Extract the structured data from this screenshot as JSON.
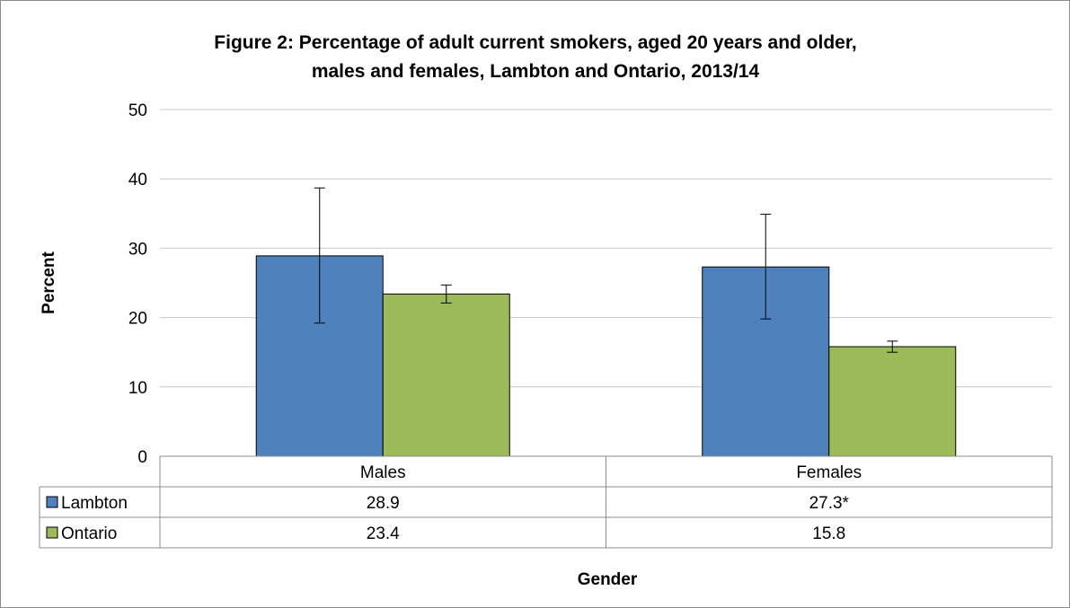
{
  "chart_data": {
    "type": "bar",
    "title_lines": [
      "Figure 2: Percentage of adult current smokers, aged 20 years and older,",
      "males and females, Lambton and Ontario, 2013/14"
    ],
    "xlabel": "Gender",
    "ylabel": "Percent",
    "ylim": [
      0,
      50
    ],
    "yticks": [
      0,
      10,
      20,
      30,
      40,
      50
    ],
    "grid": true,
    "legend": "data-table",
    "categories": [
      "Males",
      "Females"
    ],
    "series": [
      {
        "name": "Lambton",
        "color": "#4f81bd",
        "values": [
          28.9,
          27.3
        ],
        "labels": [
          "28.9",
          "27.3*"
        ],
        "error_low": [
          19.2,
          19.8
        ],
        "error_high": [
          38.7,
          34.9
        ]
      },
      {
        "name": "Ontario",
        "color": "#9bbb59",
        "values": [
          23.4,
          15.8
        ],
        "labels": [
          "23.4",
          "15.8"
        ],
        "error_low": [
          22.1,
          15.0
        ],
        "error_high": [
          24.7,
          16.6
        ]
      }
    ]
  }
}
